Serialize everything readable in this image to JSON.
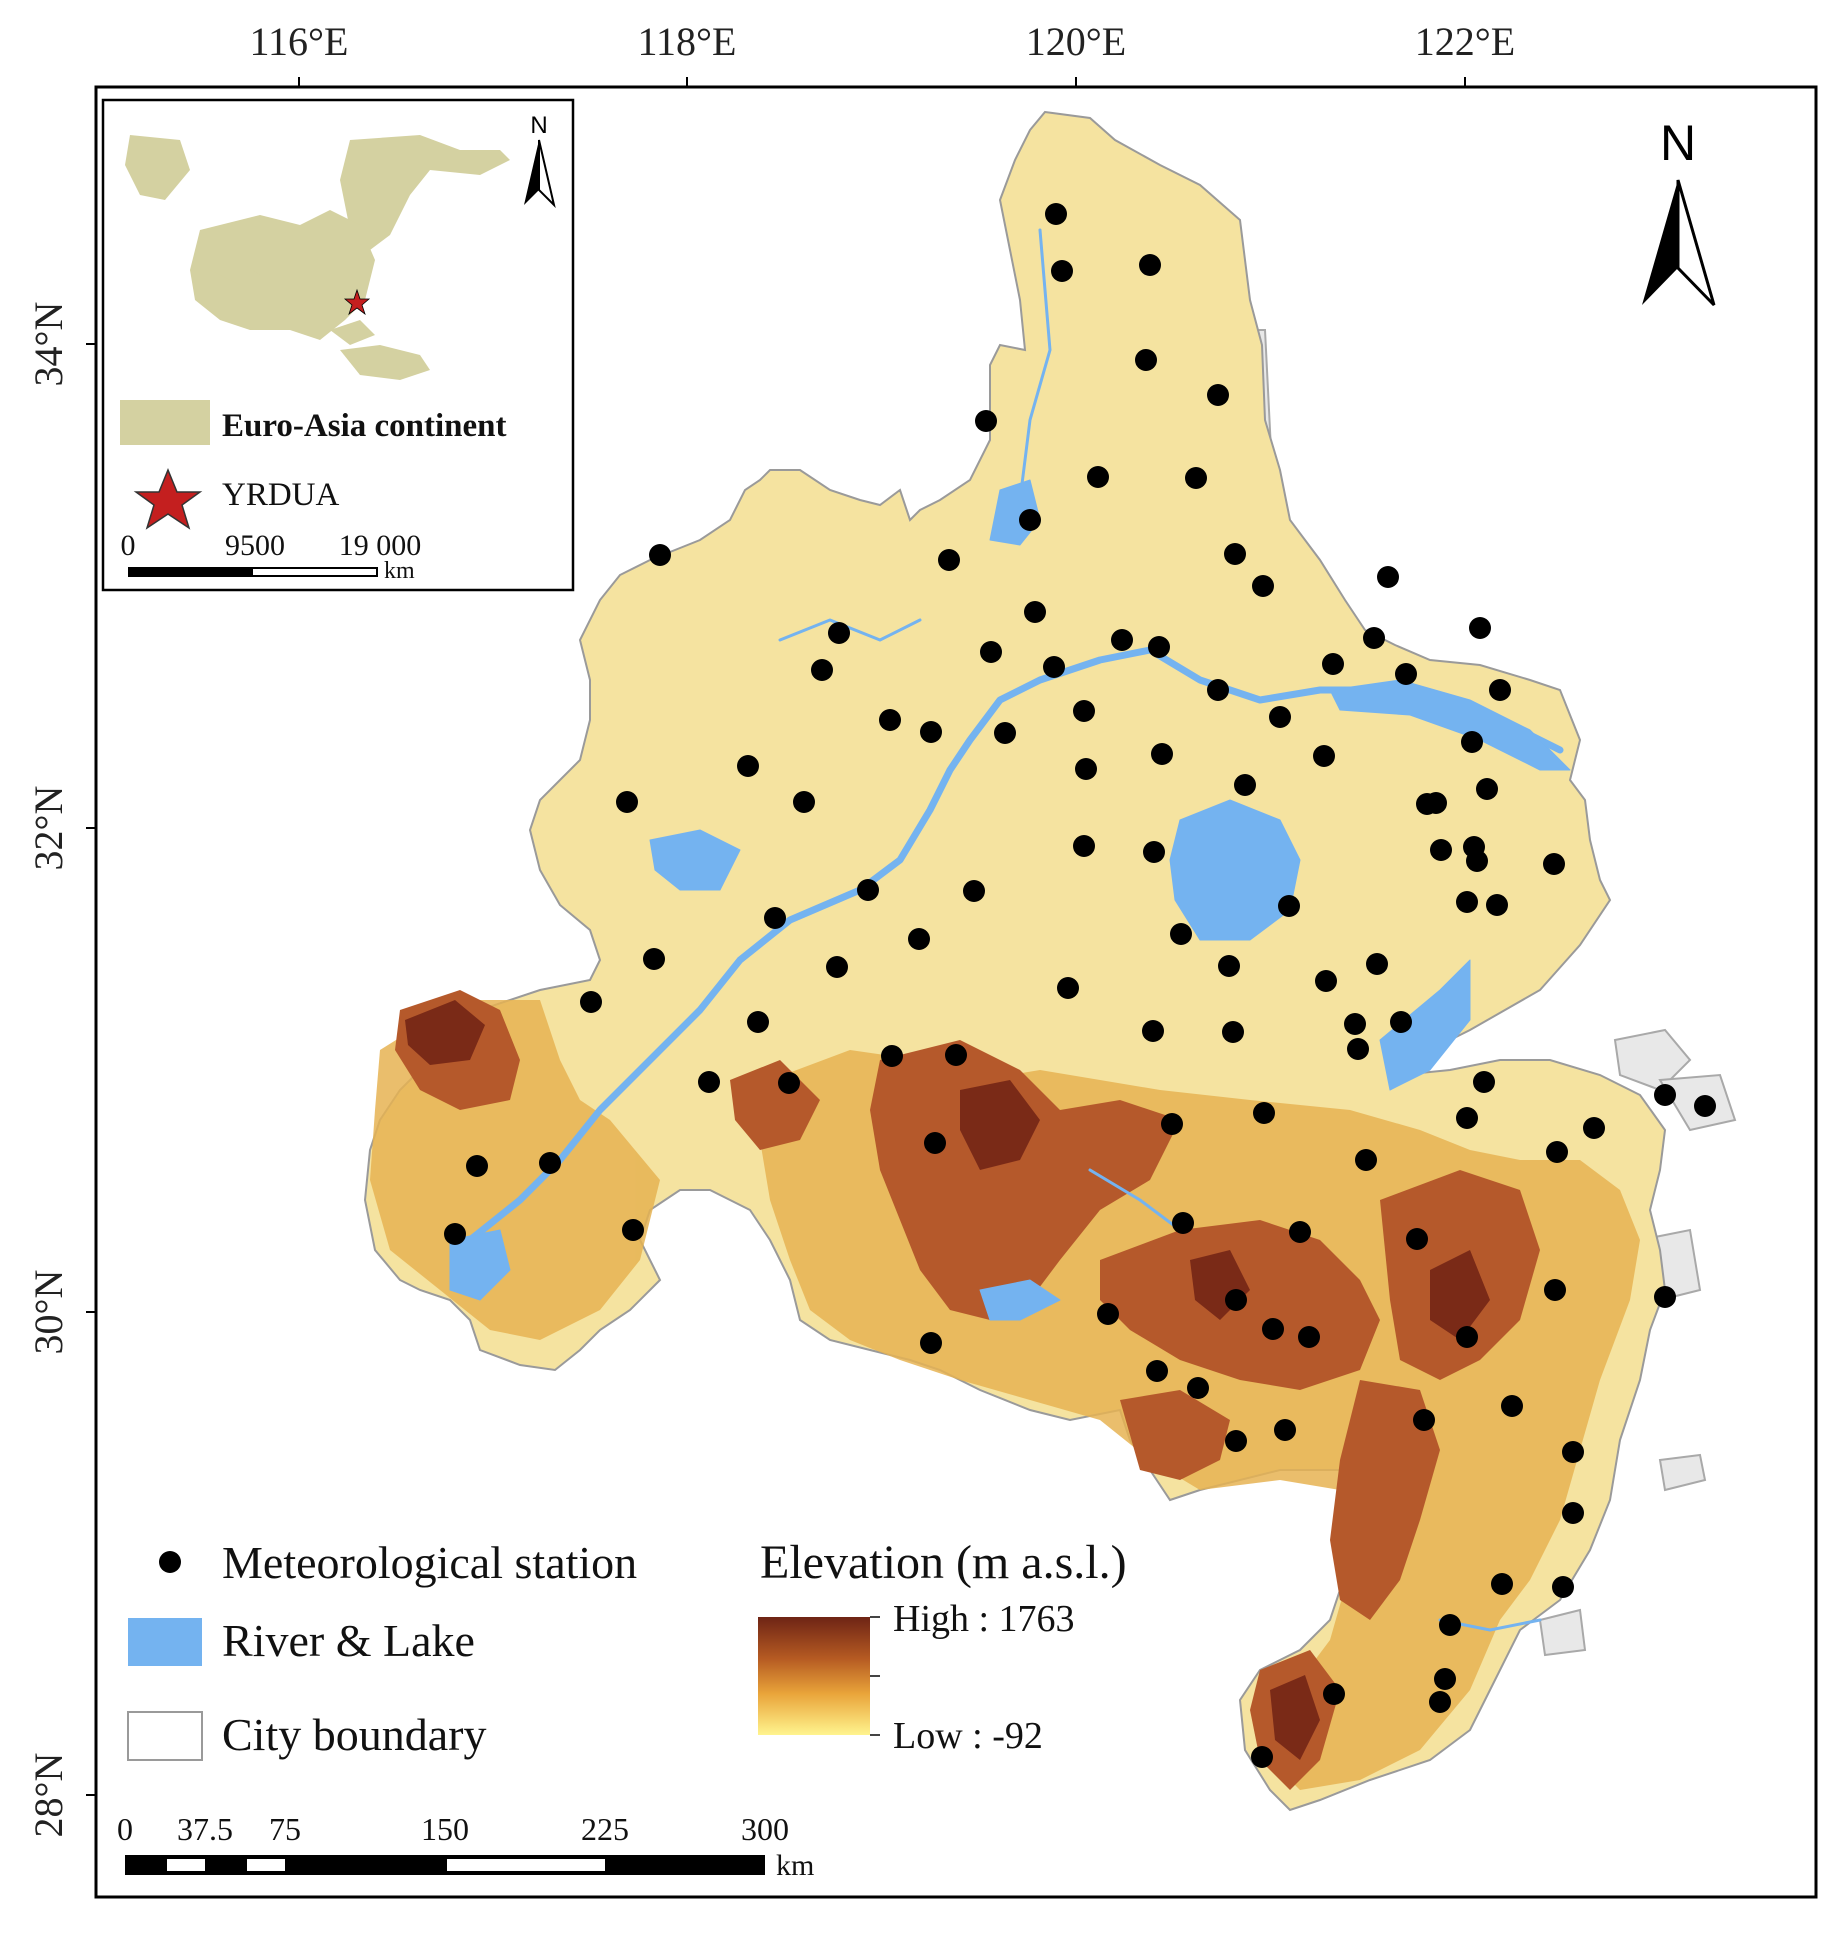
{
  "ticks": {
    "lon": [
      "116°E",
      "118°E",
      "120°E",
      "122°E"
    ],
    "lat": [
      "34°N",
      "32°N",
      "30°N",
      "28°N"
    ]
  },
  "inset": {
    "north": "N",
    "continent_label": "Euro-Asia continent",
    "study_area_label": "YRDUA",
    "scale_labels": [
      "0",
      "9500",
      "19 000"
    ],
    "scale_unit": "km"
  },
  "north_arrow": "N",
  "legend": {
    "station": "Meteorological station",
    "river_lake": "River & Lake",
    "city_boundary": "City boundary",
    "elevation_title": "Elevation (m a.s.l.)",
    "elevation_high": "High : 1763",
    "elevation_low": "Low : -92"
  },
  "scale_bar": {
    "labels": [
      "0",
      "37.5",
      "75",
      "150",
      "225",
      "300"
    ],
    "unit": "km"
  },
  "colors": {
    "plain": "#f5e3a0",
    "foothill": "#e9bd58",
    "mountain": "#b5592b",
    "peak": "#7a2a17",
    "water": "#74b3f0",
    "boundary": "#a9a9a9",
    "continent": "#d4d1a1",
    "star": "#c41f1f"
  }
}
